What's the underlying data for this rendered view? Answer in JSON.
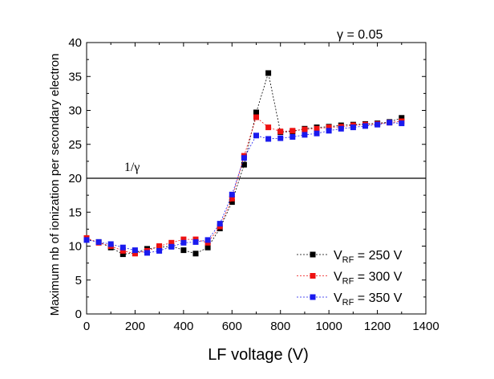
{
  "chart_data": {
    "type": "scatter",
    "title": "",
    "xlabel": "LF voltage (V)",
    "ylabel": "Maximum nb of  ionization per secondary electron",
    "xlim": [
      0,
      1400
    ],
    "ylim": [
      0,
      40
    ],
    "x_ticks": [
      "0",
      "200",
      "400",
      "600",
      "800",
      "1000",
      "1200",
      "1400"
    ],
    "y_ticks": [
      "0",
      "5",
      "10",
      "15",
      "20",
      "25",
      "30",
      "35",
      "40"
    ],
    "gamma_label": "γ = 0.05",
    "reference_line": {
      "y": 20,
      "label": "1/γ"
    },
    "legend_position": "bottom-right",
    "series": [
      {
        "name_prefix": "V",
        "name_sub": "RF",
        "name_suffix": " = 250 V",
        "color": "#000000",
        "x": [
          0,
          50,
          100,
          150,
          200,
          250,
          300,
          350,
          400,
          450,
          500,
          550,
          600,
          650,
          700,
          750,
          800,
          850,
          900,
          950,
          1000,
          1050,
          1100,
          1150,
          1200,
          1250,
          1300
        ],
        "values": [
          11.0,
          10.6,
          9.8,
          8.8,
          9.0,
          9.6,
          9.8,
          10.0,
          9.4,
          8.9,
          9.8,
          12.6,
          16.5,
          22.0,
          29.7,
          35.5,
          26.8,
          26.9,
          27.3,
          27.5,
          27.6,
          27.8,
          27.9,
          28.0,
          28.1,
          28.3,
          28.9
        ]
      },
      {
        "name_prefix": "V",
        "name_sub": "RF",
        "name_suffix": " = 300 V",
        "color": "#ee1111",
        "x": [
          0,
          50,
          100,
          150,
          200,
          250,
          300,
          350,
          400,
          450,
          500,
          550,
          600,
          650,
          700,
          750,
          800,
          850,
          900,
          950,
          1000,
          1050,
          1100,
          1150,
          1200,
          1250,
          1300
        ],
        "values": [
          11.2,
          10.5,
          10.0,
          9.3,
          8.9,
          9.3,
          10.0,
          10.5,
          11.0,
          11.0,
          10.5,
          12.9,
          17.0,
          23.3,
          29.0,
          27.5,
          26.9,
          27.0,
          27.2,
          27.3,
          27.5,
          27.6,
          27.8,
          27.9,
          28.0,
          28.2,
          28.4
        ]
      },
      {
        "name_prefix": "V",
        "name_sub": "RF",
        "name_suffix": " = 350 V",
        "color": "#1a1aee",
        "x": [
          0,
          50,
          100,
          150,
          200,
          250,
          300,
          350,
          400,
          450,
          500,
          550,
          600,
          650,
          700,
          750,
          800,
          850,
          900,
          950,
          1000,
          1050,
          1100,
          1150,
          1200,
          1250,
          1300
        ],
        "values": [
          10.9,
          10.6,
          10.3,
          9.8,
          9.4,
          9.0,
          9.3,
          9.9,
          10.5,
          10.6,
          10.9,
          13.3,
          17.6,
          23.0,
          26.3,
          25.8,
          25.9,
          26.1,
          26.4,
          26.6,
          27.0,
          27.3,
          27.5,
          27.7,
          27.9,
          28.2,
          28.1
        ]
      }
    ]
  }
}
